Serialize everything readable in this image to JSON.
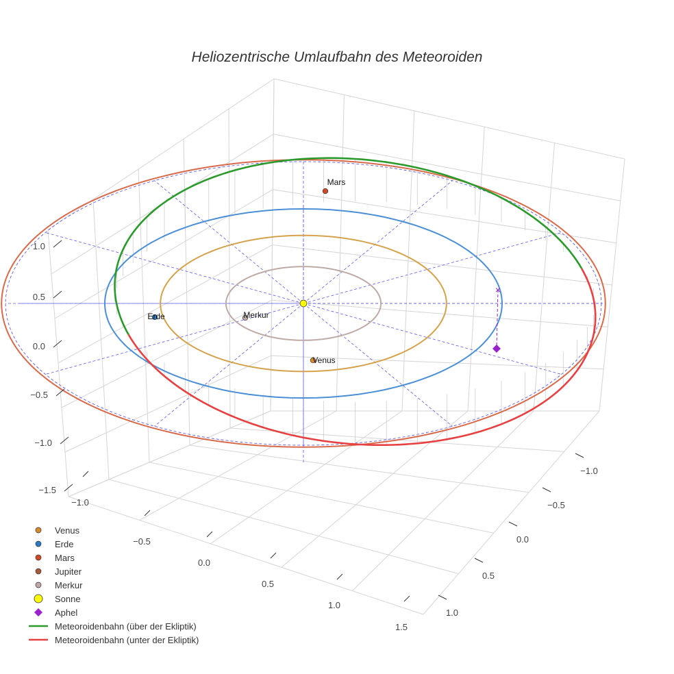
{
  "chart_data": {
    "type": "scatter3d",
    "title": "Heliozentrische Umlaufbahn des Meteoroiden",
    "axes": {
      "x": {
        "ticks": [
          "−1.0",
          "−0.5",
          "0.0",
          "0.5",
          "1.0",
          "1.5"
        ],
        "range": [
          -1.1,
          1.55
        ]
      },
      "y": {
        "ticks": [
          "−1.0",
          "−0.5",
          "0.0",
          "0.5",
          "1.0"
        ],
        "range": [
          -1.2,
          1.2
        ]
      },
      "z": {
        "ticks": [
          "1.0",
          "0.5",
          "0.0",
          "−0.5",
          "−1.0",
          "−1.5"
        ],
        "range": [
          -1.6,
          1.2
        ]
      }
    },
    "orbits": [
      {
        "name": "Merkur",
        "radius_au": 0.39,
        "color": "#bdaaa5"
      },
      {
        "name": "Venus",
        "radius_au": 0.72,
        "color": "#d4a24a"
      },
      {
        "name": "Erde",
        "radius_au": 1.0,
        "color": "#4a8fd6"
      },
      {
        "name": "Mars",
        "radius_au": 1.52,
        "color": "#d86a4a"
      }
    ],
    "planets": [
      {
        "name": "Venus",
        "label": "Venus",
        "color": "#d88a2a"
      },
      {
        "name": "Erde",
        "label": "Erde",
        "color": "#2a7ac4"
      },
      {
        "name": "Mars",
        "label": "Mars",
        "color": "#d04a2a"
      },
      {
        "name": "Jupiter",
        "label": "",
        "color": "#a65a3a"
      },
      {
        "name": "Merkur",
        "label": "Merkur",
        "color": "#bca8a8"
      },
      {
        "name": "Sonne",
        "label": "",
        "color": "#ffff00"
      }
    ],
    "meteoroid": {
      "upper_name": "Meteoroidenbahn (über der Ekliptik)",
      "lower_name": "Meteoroidenbahn (unter der Ekliptik)",
      "upper_color": "#2a9a2a",
      "lower_color": "#e84040",
      "aphelion_name": "Aphel",
      "aphelion_color": "#9a22cc"
    },
    "legend": [
      {
        "label": "Venus",
        "symbol": "circle",
        "color": "#d88a2a"
      },
      {
        "label": "Erde",
        "symbol": "circle",
        "color": "#2a7ac4"
      },
      {
        "label": "Mars",
        "symbol": "circle",
        "color": "#d04a2a"
      },
      {
        "label": "Jupiter",
        "symbol": "circle",
        "color": "#a65a3a"
      },
      {
        "label": "Merkur",
        "symbol": "circle",
        "color": "#bca8a8"
      },
      {
        "label": "Sonne",
        "symbol": "circle-big",
        "color": "#ffff00"
      },
      {
        "label": "Aphel",
        "symbol": "diamond",
        "color": "#9a22cc"
      },
      {
        "label": "Meteoroidenbahn (über der Ekliptik)",
        "symbol": "line",
        "color": "#2a9a2a"
      },
      {
        "label": "Meteoroidenbahn (unter der Ekliptik)",
        "symbol": "line",
        "color": "#e84040"
      }
    ],
    "grid": true,
    "legend_position": "bottom-left"
  }
}
